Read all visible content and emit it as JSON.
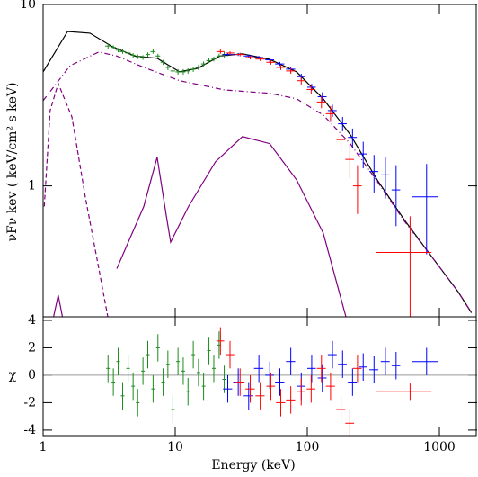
{
  "chart_data": [
    {
      "type": "errorbar",
      "ylog": true,
      "ylabel": "νFν  kev ( keV/cm² s keV)",
      "xlim": [
        1,
        1930
      ],
      "ylim": [
        0.19,
        10
      ],
      "yticks": [
        1,
        10
      ],
      "series": [
        {
          "color": "#000000",
          "style": "solid",
          "x": [
            1,
            1.53,
            2.26,
            3.34,
            4.94,
            7.3,
            10.8,
            14.8,
            21.8,
            32.3,
            51.9,
            83,
            132,
            211,
            338,
            543,
            869,
            1390,
            1750
          ],
          "values": [
            4.25,
            7.1,
            6.95,
            5.85,
            5.2,
            5.05,
            4.25,
            4.45,
            5.2,
            5.35,
            4.98,
            4.25,
            3.02,
            1.92,
            1.08,
            0.65,
            0.41,
            0.26,
            0.2
          ]
        },
        {
          "color": "#800080",
          "style": "dash-dot",
          "x": [
            1,
            1.6,
            2.64,
            3.61,
            5.78,
            10.8,
            23.7,
            51.9,
            83,
            132,
            211,
            338,
            543,
            869,
            1390,
            1750
          ],
          "values": [
            2.95,
            4.6,
            5.47,
            5.2,
            4.5,
            3.8,
            3.38,
            3.24,
            3.02,
            2.46,
            1.71,
            1.06,
            0.64,
            0.41,
            0.26,
            0.2
          ]
        },
        {
          "color": "#800080",
          "style": "dashed",
          "x": [
            1.02,
            1.13,
            1.3,
            1.65,
            2.09,
            2.64,
            3.09
          ],
          "values": [
            0.77,
            2.6,
            3.67,
            2.4,
            0.86,
            0.35,
            0.19
          ]
        },
        {
          "color": "#800080",
          "style": "solid",
          "x": [
            1.2,
            1.3,
            1.4,
            2.26,
            3.61,
            5.78,
            7.3,
            8.55,
            9.23,
            12.6,
            20.2,
            32.3,
            51.9,
            83,
            132,
            196
          ],
          "values": [
            0.19,
            0.25,
            0.19,
            null,
            0.35,
            0.77,
            1.44,
            0.69,
            0.49,
            0.77,
            1.36,
            1.87,
            1.71,
            1.08,
            0.55,
            0.19
          ]
        },
        {
          "color": "#1a8c1a",
          "style": "errorbar",
          "x": [
            3.1,
            3.4,
            3.7,
            4.0,
            4.4,
            4.8,
            5.2,
            5.7,
            6.2,
            6.8,
            7.4,
            8.1,
            8.8,
            9.6,
            10.5,
            11.5,
            12.5,
            13.7,
            15,
            16.4,
            18,
            19.6,
            21.5,
            23.5
          ],
          "xerr": [
            0.15,
            0.15,
            0.15,
            0.2,
            0.2,
            0.2,
            0.2,
            0.25,
            0.25,
            0.3,
            0.3,
            0.35,
            0.35,
            0.4,
            0.45,
            0.5,
            0.5,
            0.6,
            0.65,
            0.7,
            0.8,
            0.8,
            0.9,
            1
          ],
          "values": [
            5.9,
            5.8,
            5.6,
            5.5,
            5.4,
            5.25,
            5.15,
            5.1,
            5.3,
            5.5,
            5.2,
            4.8,
            4.5,
            4.3,
            4.25,
            4.25,
            4.3,
            4.4,
            4.5,
            4.7,
            4.9,
            5.0,
            5.2,
            5.3
          ],
          "yerr": [
            0.2,
            0.15,
            0.15,
            0.15,
            0.15,
            0.15,
            0.15,
            0.15,
            0.15,
            0.15,
            0.15,
            0.15,
            0.15,
            0.15,
            0.15,
            0.15,
            0.15,
            0.15,
            0.15,
            0.15,
            0.15,
            0.15,
            0.15,
            0.2
          ]
        },
        {
          "color": "#0000ff",
          "style": "errorbar",
          "x": [
            25,
            30,
            36,
            43,
            52,
            62,
            75,
            90,
            108,
            130,
            155,
            185,
            220,
            265,
            320,
            390,
            470,
            800
          ],
          "xerr": [
            2,
            2.5,
            3,
            3.5,
            4,
            5,
            6,
            7,
            8,
            10,
            12,
            14,
            17,
            20,
            25,
            30,
            35,
            180
          ],
          "values": [
            5.3,
            5.3,
            5.2,
            5.1,
            4.95,
            4.7,
            4.4,
            4.0,
            3.5,
            3.1,
            2.6,
            2.2,
            1.85,
            1.5,
            1.2,
            1.15,
            0.95,
            0.87
          ],
          "yerr": [
            0.1,
            0.1,
            0.1,
            0.1,
            0.12,
            0.12,
            0.14,
            0.15,
            0.15,
            0.18,
            0.2,
            0.2,
            0.22,
            0.25,
            0.28,
            0.3,
            0.35,
            0.45
          ]
        },
        {
          "color": "#ff0000",
          "style": "errorbar",
          "x": [
            22,
            26,
            31,
            37,
            44,
            53,
            63,
            75,
            90,
            107,
            128,
            150,
            180,
            210,
            240,
            600
          ],
          "xerr": [
            1.5,
            2,
            2.5,
            3,
            3.5,
            4,
            5,
            6,
            7,
            8,
            10,
            12,
            14,
            16,
            18,
            270
          ],
          "values": [
            5.5,
            5.4,
            5.3,
            5.1,
            5.0,
            4.8,
            4.5,
            4.3,
            3.8,
            3.4,
            2.9,
            2.5,
            1.8,
            1.4,
            1.0,
            0.43
          ],
          "yerr": [
            0.15,
            0.12,
            0.12,
            0.12,
            0.12,
            0.14,
            0.15,
            0.15,
            0.18,
            0.2,
            0.22,
            0.25,
            0.3,
            0.3,
            0.3,
            0.25
          ]
        }
      ]
    },
    {
      "type": "errorbar",
      "ylog": false,
      "xlabel": "Energy (keV)",
      "ylabel": "χ",
      "xlim": [
        1,
        1930
      ],
      "ylim": [
        -4.4,
        4.26
      ],
      "xticks": [
        1,
        10,
        100,
        1000
      ],
      "yticks": [
        -4,
        -2,
        0,
        2,
        4
      ],
      "hline": 0,
      "hline_color": "#999999",
      "series": [
        {
          "color": "#1a8c1a",
          "style": "errorbar",
          "x": [
            3.1,
            3.4,
            3.7,
            4.0,
            4.4,
            4.8,
            5.2,
            5.7,
            6.2,
            6.8,
            7.4,
            8.1,
            8.8,
            9.6,
            10.5,
            11.5,
            12.5,
            13.7,
            15,
            16.4,
            18,
            19.6,
            21.5,
            23.5
          ],
          "values": [
            0.5,
            -0.5,
            1,
            -1.5,
            0.5,
            -0.8,
            -2,
            0.3,
            1.5,
            -1,
            2,
            -0.5,
            0.8,
            -2.5,
            1,
            0.3,
            -1.2,
            1.5,
            0.2,
            -0.8,
            1.8,
            0.5,
            2.2,
            -0.3
          ],
          "yerr": [
            1,
            1,
            1,
            1,
            1,
            1,
            1,
            1,
            1,
            1,
            1,
            1,
            1,
            1,
            1,
            1,
            1,
            1,
            1,
            1,
            1,
            1,
            1,
            1
          ]
        },
        {
          "color": "#0000ff",
          "style": "errorbar",
          "x": [
            25,
            30,
            36,
            43,
            52,
            62,
            75,
            90,
            108,
            130,
            155,
            185,
            220,
            265,
            320,
            390,
            470,
            800
          ],
          "xerr": [
            2,
            2.5,
            3,
            3.5,
            4,
            5,
            6,
            7,
            8,
            10,
            12,
            14,
            17,
            20,
            25,
            30,
            35,
            180
          ],
          "values": [
            -1,
            -0.5,
            -1.5,
            0.5,
            0,
            -0.5,
            1,
            -0.8,
            0.5,
            -0.2,
            1.5,
            0.8,
            -0.5,
            0.6,
            0.4,
            1,
            0.7,
            1
          ],
          "yerr": [
            1,
            1,
            1,
            1,
            1,
            1,
            1,
            1,
            1,
            1,
            1,
            1,
            1,
            1,
            1,
            1,
            1,
            1
          ]
        },
        {
          "color": "#ff0000",
          "style": "errorbar",
          "x": [
            22,
            26,
            31,
            37,
            44,
            53,
            63,
            75,
            90,
            107,
            128,
            150,
            180,
            210,
            240,
            600
          ],
          "xerr": [
            1.5,
            2,
            2.5,
            3,
            3.5,
            4,
            5,
            6,
            7,
            8,
            10,
            12,
            14,
            16,
            18,
            270
          ],
          "values": [
            2.5,
            1.5,
            -0.5,
            -1,
            -1.5,
            -0.8,
            -2,
            -1.8,
            -1.2,
            -1,
            0.5,
            -0.8,
            -2.5,
            -3.5,
            0.5,
            -1.2
          ],
          "yerr": [
            1,
            1,
            1,
            1,
            1,
            1,
            1,
            1,
            1,
            1,
            1,
            1,
            1,
            1,
            1,
            0.6
          ]
        }
      ]
    }
  ]
}
